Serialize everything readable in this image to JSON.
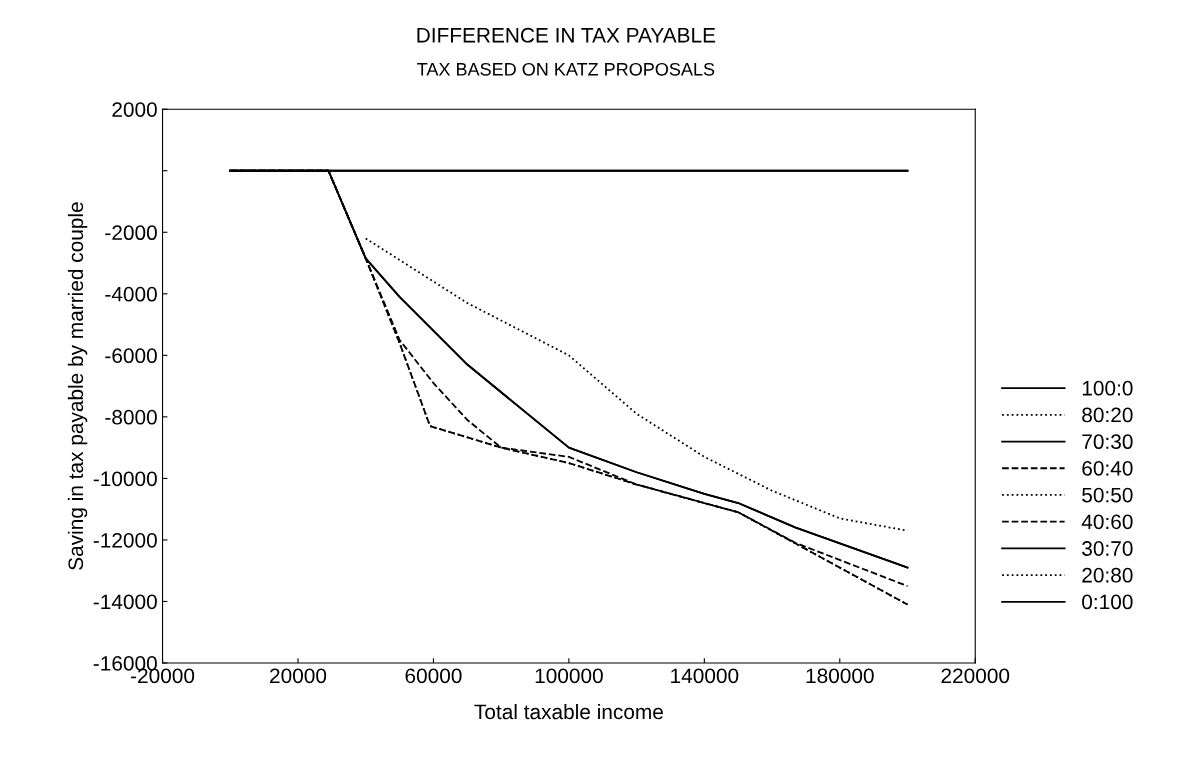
{
  "chart_data": {
    "type": "line",
    "title": "DIFFERENCE IN TAX PAYABLE",
    "subtitle": "TAX BASED ON KATZ PROPOSALS",
    "xlabel": "Total taxable income",
    "ylabel": "Saving in tax payable by married couple",
    "xlim": [
      -20000,
      220000
    ],
    "xticks": [
      -20000,
      20000,
      60000,
      100000,
      140000,
      180000,
      220000
    ],
    "ylim": [
      -16000,
      2000
    ],
    "yticks": [
      2000,
      {
        "value": 0,
        "label": null
      },
      -2000,
      -4000,
      -6000,
      -8000,
      -10000,
      -12000,
      -14000,
      -16000
    ],
    "grid": false,
    "legend": "right",
    "marker": "none",
    "series": [
      {
        "name": "100:0",
        "color": "#000000",
        "line_style": "solid",
        "x": [
          0,
          200000
        ],
        "values": [
          0,
          0
        ]
      },
      {
        "name": "80:20",
        "color": "#000000",
        "line_style": "dotted",
        "x": [
          40000,
          70000,
          100000,
          120000,
          140000,
          160000,
          180000,
          200000
        ],
        "values": [
          -2200,
          -4300,
          -6000,
          -7900,
          -9300,
          -10400,
          -11300,
          -11700
        ]
      },
      {
        "name": "70:30",
        "color": "#000000",
        "line_style": "solid",
        "x": [
          0,
          29000,
          40000,
          50000,
          70000,
          100000,
          120000,
          140000,
          150000,
          167000,
          200000
        ],
        "values": [
          0,
          0,
          -2850,
          -4100,
          -6300,
          -9000,
          -9800,
          -10500,
          -10800,
          -11600,
          -12900
        ]
      },
      {
        "name": "60:40",
        "color": "#000000",
        "line_style": "dashed",
        "x": [
          0,
          29000,
          40000,
          50000,
          60000,
          70000,
          80000,
          100000,
          120000,
          150000,
          167000,
          200000
        ],
        "values": [
          0,
          0,
          -2850,
          -5500,
          -6900,
          -8100,
          -9000,
          -9300,
          -10200,
          -11100,
          -12100,
          -13500
        ]
      },
      {
        "name": "50:50",
        "color": "#000000",
        "line_style": "dotted",
        "x": [
          0,
          29000,
          40000,
          50000,
          59000,
          80000,
          100000,
          120000,
          150000,
          170000,
          200000
        ],
        "values": [
          0,
          0,
          -2850,
          -5600,
          -8300,
          -9000,
          -9500,
          -10200,
          -11100,
          -12300,
          -14100
        ]
      },
      {
        "name": "40:60",
        "color": "#000000",
        "line_style": "dashed",
        "x": [
          0,
          29000,
          40000,
          50000,
          59000,
          80000,
          100000,
          120000,
          150000,
          170000,
          200000
        ],
        "values": [
          0,
          0,
          -2850,
          -5600,
          -8300,
          -9000,
          -9500,
          -10200,
          -11100,
          -12300,
          -14100
        ]
      },
      {
        "name": "30:70",
        "color": "#000000",
        "line_style": "solid",
        "x": [
          0,
          29000,
          40000,
          50000,
          70000,
          100000,
          120000,
          140000,
          150000,
          167000,
          200000
        ],
        "values": [
          0,
          0,
          -2850,
          -4100,
          -6300,
          -9000,
          -9800,
          -10500,
          -10800,
          -11600,
          -12900
        ]
      },
      {
        "name": "20:80",
        "color": "#000000",
        "line_style": "dotted"
      },
      {
        "name": "0:100",
        "color": "#000000",
        "line_style": "solid",
        "x": [
          0,
          200000
        ],
        "values": [
          0,
          0
        ]
      }
    ]
  }
}
